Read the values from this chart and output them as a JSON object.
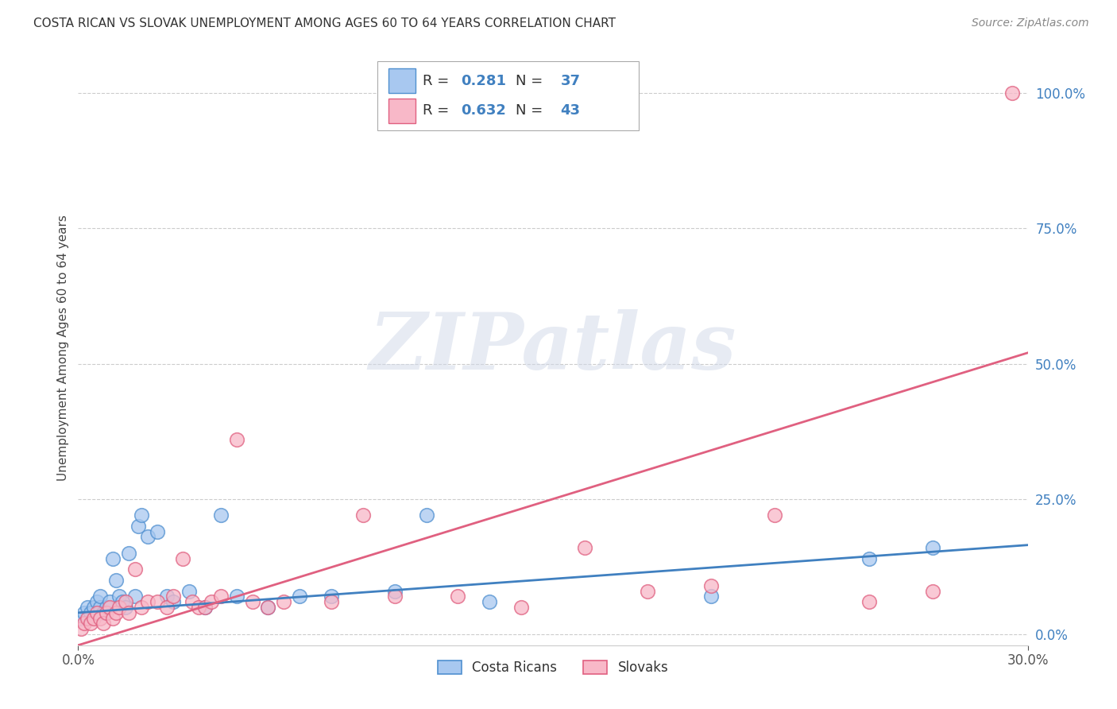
{
  "title": "COSTA RICAN VS SLOVAK UNEMPLOYMENT AMONG AGES 60 TO 64 YEARS CORRELATION CHART",
  "source": "Source: ZipAtlas.com",
  "ylabel": "Unemployment Among Ages 60 to 64 years",
  "xlim": [
    0.0,
    0.3
  ],
  "ylim": [
    -0.02,
    1.08
  ],
  "yticks": [
    0.0,
    0.25,
    0.5,
    0.75,
    1.0
  ],
  "ytick_labels": [
    "0.0%",
    "25.0%",
    "50.0%",
    "75.0%",
    "100.0%"
  ],
  "xticks": [
    0.0,
    0.3
  ],
  "xtick_labels": [
    "0.0%",
    "30.0%"
  ],
  "costa_rican_R": "0.281",
  "costa_rican_N": "37",
  "slovak_R": "0.632",
  "slovak_N": "43",
  "cr_scatter_color": "#a8c8f0",
  "cr_scatter_edge": "#5090d0",
  "cr_line_color": "#4080c0",
  "sk_scatter_color": "#f8b8c8",
  "sk_scatter_edge": "#e06080",
  "sk_line_color": "#e06080",
  "legend_label_1": "Costa Ricans",
  "legend_label_2": "Slovaks",
  "watermark": "ZIPatlas",
  "background_color": "#ffffff",
  "grid_color": "#cccccc",
  "axis_label_color": "#4080c0",
  "cr_trend_x0": 0.0,
  "cr_trend_y0": 0.04,
  "cr_trend_x1": 0.3,
  "cr_trend_y1": 0.165,
  "sk_trend_x0": 0.0,
  "sk_trend_y0": -0.02,
  "sk_trend_x1": 0.3,
  "sk_trend_y1": 0.52,
  "costa_ricans_x": [
    0.001,
    0.002,
    0.003,
    0.004,
    0.005,
    0.006,
    0.007,
    0.007,
    0.008,
    0.009,
    0.01,
    0.011,
    0.012,
    0.013,
    0.014,
    0.015,
    0.016,
    0.018,
    0.019,
    0.02,
    0.022,
    0.025,
    0.028,
    0.03,
    0.035,
    0.04,
    0.045,
    0.05,
    0.06,
    0.07,
    0.08,
    0.1,
    0.11,
    0.13,
    0.2,
    0.25,
    0.27
  ],
  "costa_ricans_y": [
    0.03,
    0.04,
    0.05,
    0.04,
    0.05,
    0.06,
    0.05,
    0.07,
    0.04,
    0.05,
    0.06,
    0.14,
    0.1,
    0.07,
    0.06,
    0.05,
    0.15,
    0.07,
    0.2,
    0.22,
    0.18,
    0.19,
    0.07,
    0.06,
    0.08,
    0.05,
    0.22,
    0.07,
    0.05,
    0.07,
    0.07,
    0.08,
    0.22,
    0.06,
    0.07,
    0.14,
    0.16
  ],
  "slovaks_x": [
    0.001,
    0.002,
    0.003,
    0.004,
    0.005,
    0.006,
    0.007,
    0.008,
    0.009,
    0.01,
    0.011,
    0.012,
    0.013,
    0.015,
    0.016,
    0.018,
    0.02,
    0.022,
    0.025,
    0.028,
    0.03,
    0.033,
    0.036,
    0.038,
    0.04,
    0.042,
    0.045,
    0.05,
    0.055,
    0.06,
    0.065,
    0.08,
    0.09,
    0.1,
    0.12,
    0.14,
    0.16,
    0.18,
    0.2,
    0.22,
    0.25,
    0.27,
    0.295
  ],
  "slovaks_y": [
    0.01,
    0.02,
    0.03,
    0.02,
    0.03,
    0.04,
    0.03,
    0.02,
    0.04,
    0.05,
    0.03,
    0.04,
    0.05,
    0.06,
    0.04,
    0.12,
    0.05,
    0.06,
    0.06,
    0.05,
    0.07,
    0.14,
    0.06,
    0.05,
    0.05,
    0.06,
    0.07,
    0.36,
    0.06,
    0.05,
    0.06,
    0.06,
    0.22,
    0.07,
    0.07,
    0.05,
    0.16,
    0.08,
    0.09,
    0.22,
    0.06,
    0.08,
    1.0
  ]
}
